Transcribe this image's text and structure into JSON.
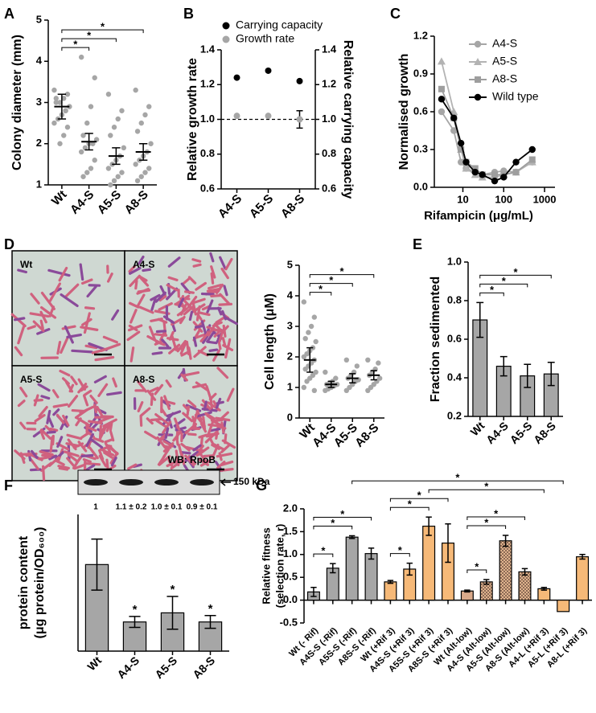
{
  "chart_data": [
    {
      "panel": "A",
      "type": "dotplot",
      "ylabel": "Colony diameter (mm)",
      "categories": [
        "Wt",
        "A4-S",
        "A5-S",
        "A8-S"
      ],
      "points": [
        [
          3.3,
          3.2,
          3.1,
          3.0,
          3.0,
          2.9,
          2.8,
          2.7,
          2.6,
          2.5,
          2.4,
          2.2,
          2.0,
          3.1,
          2.9,
          2.8
        ],
        [
          4.1,
          3.6,
          2.9,
          2.5,
          2.2,
          2.1,
          2.0,
          2.0,
          1.9,
          1.8,
          1.6,
          1.4,
          1.3,
          1.2
        ],
        [
          3.2,
          2.8,
          2.6,
          2.4,
          2.2,
          1.9,
          1.7,
          1.6,
          1.5,
          1.4,
          1.3,
          1.2,
          1.1,
          1.0
        ],
        [
          3.3,
          2.9,
          2.7,
          2.5,
          2.3,
          2.0,
          1.8,
          1.7,
          1.6,
          1.5,
          1.4,
          1.3,
          1.2,
          1.1
        ]
      ],
      "values": [
        2.9,
        2.05,
        1.7,
        1.8
      ],
      "errors": [
        0.3,
        0.2,
        0.2,
        0.2
      ],
      "color": "#a6a6a6",
      "ylim": [
        1,
        5
      ],
      "yticks": [
        1,
        2,
        3,
        4,
        5
      ],
      "significance": [
        {
          "pair": [
            "Wt",
            "A4-S"
          ],
          "label": "*"
        },
        {
          "pair": [
            "Wt",
            "A5-S"
          ],
          "label": "*"
        },
        {
          "pair": [
            "Wt",
            "A8-S"
          ],
          "label": "*"
        }
      ]
    },
    {
      "panel": "B",
      "type": "dualdot",
      "ylabel": "Relative growth rate",
      "y2label": "Relative carrying capacity",
      "categories": [
        "A4-S",
        "A5-S",
        "A8-S"
      ],
      "series": [
        {
          "name": "Carrying capacity",
          "color": "#000000",
          "axis": "y2",
          "values": [
            1.24,
            1.28,
            1.22
          ]
        },
        {
          "name": "Growth rate",
          "color": "#a6a6a6",
          "values": [
            1.02,
            1.02,
            1.0
          ],
          "errors": [
            null,
            null,
            0.05
          ]
        }
      ],
      "ylim": [
        0.6,
        1.4
      ],
      "yticks": [
        0.6,
        0.8,
        {
          "value": 1,
          "label": "1.0"
        },
        1.2,
        1.4
      ],
      "y2lim": [
        0.6,
        1.4
      ],
      "y2ticks": [
        0.6,
        0.8,
        {
          "value": 1,
          "label": "1.0"
        },
        1.2,
        1.4
      ],
      "reference_line": 1
    },
    {
      "panel": "C",
      "type": "line",
      "ylabel": "Normalised growth",
      "xlabel": "Rifampicin (μg/mL)",
      "log_x": true,
      "x": [
        3,
        6,
        9,
        12,
        20,
        30,
        60,
        100,
        200,
        500
      ],
      "series": [
        {
          "name": "A4-S",
          "color": "#a6a6a6",
          "marker": "circle",
          "values": [
            0.6,
            0.45,
            0.2,
            0.15,
            0.12,
            0.1,
            0.12,
            0.13,
            0.12,
            0.2
          ]
        },
        {
          "name": "A5-S",
          "color": "#b3b3b3",
          "marker": "triangle",
          "values": [
            1.0,
            0.6,
            0.3,
            0.15,
            0.1,
            0.08,
            0.08,
            0.1,
            0.12,
            0.2
          ]
        },
        {
          "name": "A8-S",
          "color": "#9e9e9e",
          "marker": "square",
          "values": [
            0.78,
            0.55,
            0.3,
            0.2,
            0.15,
            0.1,
            0.1,
            0.1,
            0.12,
            0.22
          ]
        },
        {
          "name": "Wild type",
          "color": "#000000",
          "marker": "circle",
          "values": [
            0.7,
            0.55,
            0.35,
            0.2,
            0.12,
            0.1,
            0.05,
            0.08,
            0.2,
            0.3
          ]
        }
      ],
      "xlim": [
        2,
        1800
      ],
      "xticks": [
        10,
        100,
        1000
      ],
      "ylim": [
        0,
        1.2
      ],
      "yticks": [
        {
          "value": 0,
          "label": "0.0"
        },
        0.3,
        0.6,
        0.9,
        1.2
      ]
    },
    {
      "panel": "D",
      "type": "micrograph",
      "labels": [
        "Wt",
        "A4-S",
        "A5-S",
        "A8-S"
      ]
    },
    {
      "type": "dotplot",
      "ylabel": "Cell length (μM)",
      "categories": [
        "Wt",
        "A4-S",
        "A5-S",
        "A8-S"
      ],
      "points": [
        [
          3.8,
          3.3,
          3.0,
          2.8,
          2.6,
          2.5,
          2.3,
          2.2,
          2.1,
          2.0,
          1.9,
          1.8,
          1.7,
          1.6,
          1.5,
          1.4,
          1.3,
          1.2,
          1.0,
          0.9
        ],
        [
          1.5,
          1.3,
          1.2,
          1.15,
          1.1,
          1.1,
          1.05,
          1.0,
          0.95,
          0.9
        ],
        [
          1.9,
          1.7,
          1.5,
          1.4,
          1.3,
          1.25,
          1.2,
          1.1,
          1.0,
          0.9
        ],
        [
          1.9,
          1.8,
          1.6,
          1.5,
          1.4,
          1.3,
          1.2,
          1.1,
          1.0,
          0.9
        ]
      ],
      "values": [
        1.9,
        1.1,
        1.3,
        1.4
      ],
      "errors": [
        0.4,
        0.1,
        0.15,
        0.15
      ],
      "color": "#a6a6a6",
      "ylim": [
        0,
        5
      ],
      "yticks": [
        0,
        1,
        2,
        3,
        4,
        5
      ],
      "significance": [
        {
          "pair": [
            "Wt",
            "A4-S"
          ],
          "label": "*"
        },
        {
          "pair": [
            "Wt",
            "A5-S"
          ],
          "label": "*"
        },
        {
          "pair": [
            "Wt",
            "A8-S"
          ],
          "label": "*"
        }
      ]
    },
    {
      "panel": "E",
      "type": "bar",
      "ylabel": "Fraction sedimented",
      "categories": [
        "Wt",
        "A4-S",
        "A5-S",
        "A8-S"
      ],
      "values": [
        0.7,
        0.46,
        0.41,
        0.42
      ],
      "errors": [
        0.09,
        0.05,
        0.06,
        0.06
      ],
      "color": "#a6a6a6",
      "ylim": [
        0.2,
        1.0
      ],
      "yticks": [
        0.2,
        0.4,
        0.6,
        0.8,
        {
          "value": 1,
          "label": "1.0"
        }
      ],
      "significance": [
        {
          "pair": [
            "Wt",
            "A4-S"
          ],
          "label": "*"
        },
        {
          "pair": [
            "Wt",
            "A5-S"
          ],
          "label": "*"
        },
        {
          "pair": [
            "Wt",
            "A8-S"
          ],
          "label": "*"
        }
      ]
    },
    {
      "panel": "F",
      "type": "bar",
      "ylabel": [
        "protein content",
        "(μg protein/OD₆₀₀)"
      ],
      "categories": [
        "Wt",
        "A4-S",
        "A5-S",
        "A8-S"
      ],
      "values": [
        39.5,
        33.2,
        34.2,
        33.2
      ],
      "errors": [
        2.8,
        0.6,
        1.8,
        0.7
      ],
      "sig": [
        null,
        "*",
        "*",
        "*"
      ],
      "color": "#a6a6a6",
      "ylim": [
        30,
        45
      ],
      "blot": {
        "title": "WB: RpoB",
        "size": "150 kDa",
        "lanes": [
          "1",
          "1.1 ± 0.2",
          "1.0 ± 0.1",
          "0.9 ± 0.1"
        ]
      }
    },
    {
      "panel": "G",
      "type": "bar",
      "ylabel": [
        "Relative fitness",
        "(selection rate, r)"
      ],
      "categories": [
        "Wt (- Rif)",
        "A4S-S (-Rif)",
        "A5S-S (-Rif)",
        "A8S-S (-Rif)",
        "Wt (+Rif 3)",
        "A4S-S (+Rif 3)",
        "A5S-S (+Rif 3)",
        "A8S-S (+Rif 3)",
        "Wt (Alt-low)",
        "A4-S (Alt-low)",
        "A5-S (Alt-low)",
        "A8-S (Alt-low)",
        "A4-L (+Rif 3)",
        "A5-L (+Rif 3)",
        "A8-L (+Rif 3)"
      ],
      "values": [
        0.18,
        0.7,
        1.38,
        1.02,
        0.4,
        0.68,
        1.62,
        1.25,
        0.2,
        0.4,
        1.3,
        0.62,
        0.25,
        -0.25,
        0.95
      ],
      "errors": [
        0.1,
        0.1,
        0.03,
        0.12,
        0.03,
        0.13,
        0.2,
        0.42,
        0.02,
        0.05,
        0.12,
        0.07,
        0.03,
        null,
        0.05
      ],
      "colors": [
        "#a6a6a6",
        "#a6a6a6",
        "#a6a6a6",
        "#a6a6a6",
        "#f6b978",
        "#f6b978",
        "#f6b978",
        "#f6b978",
        "#d9a98a",
        "#e0b48e",
        "#e0b48e",
        "#e0b48e",
        "#f6b978",
        "#f6b978",
        "#f6b978"
      ],
      "hatched": [
        false,
        false,
        false,
        false,
        false,
        false,
        false,
        false,
        false,
        true,
        true,
        true,
        false,
        false,
        false
      ],
      "ylim": [
        -0.5,
        2.0
      ],
      "yticks": [
        -0.5,
        {
          "value": 0,
          "label": "0.0"
        },
        0.5,
        {
          "value": 1,
          "label": "1.0"
        },
        1.5,
        {
          "value": 2,
          "label": "2.0"
        }
      ],
      "significance": [
        {
          "pair": [
            "Wt (- Rif)",
            "A4S-S (-Rif)"
          ],
          "label": "*"
        },
        {
          "pair": [
            "Wt (- Rif)",
            "A5S-S (-Rif)"
          ],
          "label": "*"
        },
        {
          "pair": [
            "Wt (- Rif)",
            "A8S-S (-Rif)"
          ],
          "label": "*"
        },
        {
          "pair": [
            "Wt (+Rif 3)",
            "A4S-S (+Rif 3)"
          ],
          "label": "*"
        },
        {
          "pair": [
            "Wt (+Rif 3)",
            "A5S-S (+Rif 3)"
          ],
          "label": "*"
        },
        {
          "pair": [
            "Wt (+Rif 3)",
            "A8S-S (+Rif 3)"
          ],
          "label": "*"
        },
        {
          "pair": [
            "Wt (Alt-low)",
            "A4-S (Alt-low)"
          ],
          "label": "*"
        },
        {
          "pair": [
            "Wt (Alt-low)",
            "A5-S (Alt-low)"
          ],
          "label": "*"
        },
        {
          "pair": [
            "Wt (Alt-low)",
            "A8-S (Alt-low)"
          ],
          "label": "*"
        },
        {
          "pair": [
            "A5S-S (+Rif 3)",
            "A4-L (+Rif 3)"
          ],
          "label": "*"
        },
        {
          "pair": [
            "A5S-S (-Rif)",
            "A5-L (+Rif 3)"
          ],
          "label": "*"
        }
      ]
    }
  ]
}
